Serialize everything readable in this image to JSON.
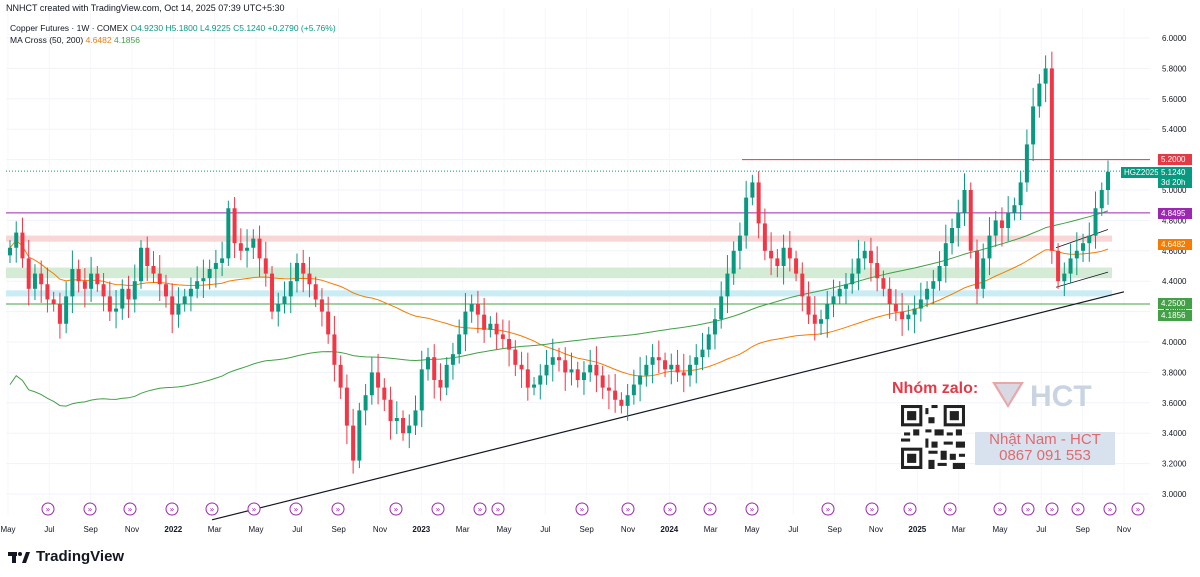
{
  "caption": "NNHCT created with TradingView.com, Oct 14, 2025 07:39 UTC+5:30",
  "legend": {
    "symbol_line": "Copper Futures · 1W · COMEX",
    "open": "O4.9230",
    "high": "H5.1800",
    "low": "L4.9225",
    "close": "C5.1240",
    "change": "+0.2790 (+5.76%)",
    "ma_label": "MA Cross (50, 200)",
    "ma_fast": "4.6482",
    "ma_slow": "4.1856"
  },
  "price_tags": {
    "resistance": "5.2000",
    "symbol": "HGZ2025",
    "last": "5.1240",
    "countdown": "3d 20h",
    "level_purple": "4.8495",
    "ma_fast": "4.6482",
    "level_green": "4.2500",
    "ma_slow": "4.1856"
  },
  "colors": {
    "up": "#089981",
    "down": "#f23645",
    "ma_fast": "#f57c00",
    "ma_slow": "#43a047",
    "resistance": "#e53946",
    "purple_level": "#9c27b0",
    "pink_zone": "#f9d6d6",
    "green_zone": "#d4ecd5",
    "blue_zone": "#c9ecf5"
  },
  "watermark": {
    "group_label": "Nhóm zalo:",
    "brand": "HCT",
    "contact_name": "Nhật Nam - HCT",
    "contact_phone": "0867 091 553"
  },
  "footer": {
    "brand": "TradingView"
  },
  "chart_data": {
    "type": "candlestick",
    "y_axis": {
      "min": 3.0,
      "max": 6.0,
      "ticks": [
        "6.0000",
        "5.8000",
        "5.6000",
        "5.4000",
        "5.2000",
        "5.0000",
        "4.8000",
        "4.6000",
        "4.4000",
        "4.2000",
        "4.0000",
        "3.8000",
        "3.6000",
        "3.4000",
        "3.2000",
        "3.0000"
      ]
    },
    "x_ticks": [
      "May",
      "Jul",
      "Sep",
      "Nov",
      "2022",
      "Mar",
      "May",
      "Jul",
      "Sep",
      "Nov",
      "2023",
      "Mar",
      "May",
      "Jul",
      "Sep",
      "Nov",
      "2024",
      "Mar",
      "May",
      "Jul",
      "Sep",
      "Nov",
      "2025",
      "Mar",
      "May",
      "Jul",
      "Sep",
      "Nov"
    ],
    "levels": {
      "resistance": 5.2,
      "purple": 4.8495,
      "green": 4.25
    },
    "zones": {
      "pink": [
        4.66,
        4.7
      ],
      "green": [
        4.42,
        4.49
      ],
      "blue": [
        4.3,
        4.34
      ]
    },
    "close_series": [
      4.62,
      4.72,
      4.55,
      4.35,
      4.45,
      4.38,
      4.28,
      4.25,
      4.12,
      4.3,
      4.48,
      4.4,
      4.35,
      4.45,
      4.38,
      4.3,
      4.2,
      4.22,
      4.35,
      4.28,
      4.4,
      4.62,
      4.5,
      4.45,
      4.38,
      4.3,
      4.18,
      4.25,
      4.3,
      4.35,
      4.4,
      4.42,
      4.48,
      4.52,
      4.55,
      4.88,
      4.65,
      4.6,
      4.62,
      4.68,
      4.55,
      4.45,
      4.2,
      4.25,
      4.3,
      4.4,
      4.52,
      4.45,
      4.38,
      4.28,
      4.2,
      4.05,
      3.85,
      3.7,
      3.45,
      3.22,
      3.55,
      3.65,
      3.8,
      3.7,
      3.62,
      3.48,
      3.5,
      3.4,
      3.45,
      3.55,
      3.82,
      3.9,
      3.75,
      3.7,
      3.85,
      3.92,
      4.05,
      4.2,
      4.25,
      4.18,
      4.08,
      4.12,
      4.05,
      4.02,
      3.95,
      3.85,
      3.82,
      3.7,
      3.72,
      3.78,
      3.85,
      3.9,
      3.88,
      3.8,
      3.82,
      3.75,
      3.8,
      3.85,
      3.78,
      3.7,
      3.68,
      3.62,
      3.58,
      3.65,
      3.72,
      3.78,
      3.85,
      3.9,
      3.88,
      3.82,
      3.85,
      3.8,
      3.78,
      3.85,
      3.9,
      3.95,
      4.05,
      4.15,
      4.3,
      4.45,
      4.6,
      4.7,
      4.95,
      5.05,
      4.78,
      4.6,
      4.55,
      4.5,
      4.62,
      4.55,
      4.45,
      4.3,
      4.18,
      4.12,
      4.15,
      4.25,
      4.3,
      4.35,
      4.38,
      4.45,
      4.55,
      4.6,
      4.52,
      4.42,
      4.35,
      4.25,
      4.2,
      4.15,
      4.18,
      4.22,
      4.28,
      4.35,
      4.4,
      4.5,
      4.65,
      4.75,
      4.85,
      5.0,
      4.6,
      4.35,
      4.55,
      4.7,
      4.8,
      4.75,
      4.85,
      4.9,
      5.05,
      5.3,
      5.55,
      5.7,
      5.8,
      4.6,
      4.4,
      4.45,
      4.55,
      4.6,
      4.65,
      4.7,
      4.88,
      5.0,
      5.12
    ],
    "series": [
      {
        "name": "Copper Futures · 1W · COMEX"
      },
      {
        "name": "MA Cross (50, 200)"
      }
    ]
  }
}
